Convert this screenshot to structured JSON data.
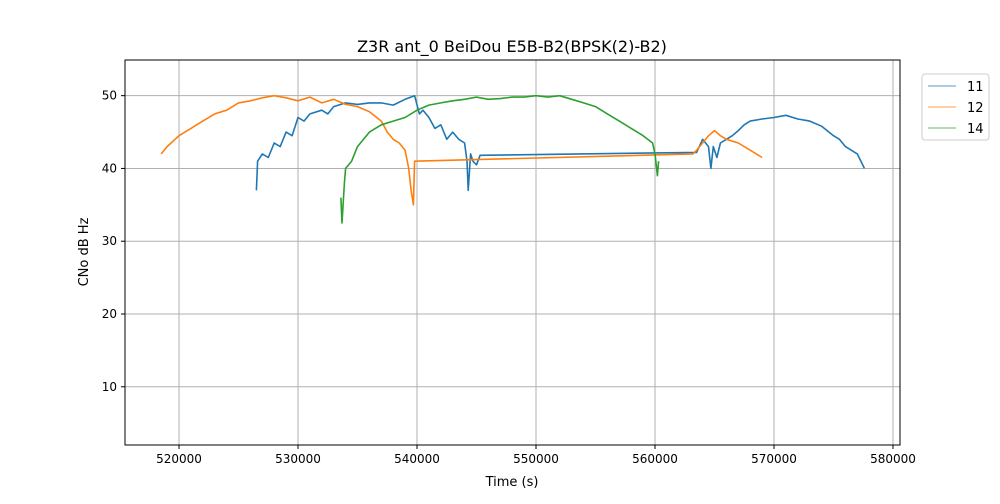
{
  "chart_data": {
    "type": "line",
    "title": "Z3R ant_0 BeiDou E5B-B2(BPSK(2)-B2)",
    "xlabel": "Time (s)",
    "ylabel": "CNo dB Hz",
    "xlim": [
      515460,
      580590
    ],
    "ylim": [
      2.0,
      54.9
    ],
    "xticks": [
      520000,
      530000,
      540000,
      550000,
      560000,
      570000,
      580000
    ],
    "yticks": [
      10,
      20,
      30,
      40,
      50
    ],
    "grid": true,
    "legend_position": "outside-top-right",
    "series": [
      {
        "name": "11",
        "color": "#1f77b4",
        "points": [
          [
            526500,
            37
          ],
          [
            526600,
            41
          ],
          [
            527000,
            42
          ],
          [
            527500,
            41.5
          ],
          [
            528000,
            43.5
          ],
          [
            528500,
            43
          ],
          [
            529000,
            45
          ],
          [
            529500,
            44.5
          ],
          [
            530000,
            47
          ],
          [
            530500,
            46.5
          ],
          [
            531000,
            47.5
          ],
          [
            532000,
            48
          ],
          [
            532500,
            47.5
          ],
          [
            533000,
            48.5
          ],
          [
            534000,
            49
          ],
          [
            535000,
            48.8
          ],
          [
            536000,
            49
          ],
          [
            537000,
            49
          ],
          [
            538000,
            48.7
          ],
          [
            539000,
            49.5
          ],
          [
            539800,
            50
          ],
          [
            540200,
            47.5
          ],
          [
            540500,
            48
          ],
          [
            541000,
            47
          ],
          [
            541500,
            45.5
          ],
          [
            542000,
            46
          ],
          [
            542500,
            44
          ],
          [
            543000,
            45
          ],
          [
            543500,
            44
          ],
          [
            544000,
            43.5
          ],
          [
            544200,
            41
          ],
          [
            544300,
            37
          ],
          [
            544500,
            42
          ],
          [
            544700,
            41
          ],
          [
            545000,
            40.5
          ],
          [
            545300,
            41.8
          ],
          [
            563500,
            42.2
          ],
          [
            564000,
            44
          ],
          [
            564500,
            43
          ],
          [
            564700,
            40
          ],
          [
            564900,
            43
          ],
          [
            565200,
            41.5
          ],
          [
            565500,
            43.5
          ],
          [
            566000,
            44
          ],
          [
            566500,
            44.5
          ],
          [
            567000,
            45.2
          ],
          [
            567500,
            46
          ],
          [
            568000,
            46.5
          ],
          [
            569000,
            46.8
          ],
          [
            570000,
            47
          ],
          [
            571000,
            47.3
          ],
          [
            572000,
            46.8
          ],
          [
            573000,
            46.5
          ],
          [
            574000,
            45.8
          ],
          [
            575000,
            44.5
          ],
          [
            575500,
            44
          ],
          [
            576000,
            43
          ],
          [
            576500,
            42.5
          ],
          [
            577000,
            42
          ],
          [
            577600,
            40
          ]
        ]
      },
      {
        "name": "12",
        "color": "#ff7f0e",
        "points": [
          [
            518500,
            42
          ],
          [
            519000,
            43
          ],
          [
            520000,
            44.5
          ],
          [
            521000,
            45.5
          ],
          [
            522000,
            46.5
          ],
          [
            523000,
            47.5
          ],
          [
            524000,
            48
          ],
          [
            525000,
            49
          ],
          [
            526000,
            49.3
          ],
          [
            527000,
            49.7
          ],
          [
            528000,
            50
          ],
          [
            529000,
            49.7
          ],
          [
            530000,
            49.3
          ],
          [
            531000,
            49.8
          ],
          [
            532000,
            49
          ],
          [
            533000,
            49.5
          ],
          [
            534000,
            48.8
          ],
          [
            535000,
            48.5
          ],
          [
            536000,
            47.8
          ],
          [
            537000,
            46.5
          ],
          [
            537500,
            45
          ],
          [
            538000,
            44
          ],
          [
            538500,
            43.5
          ],
          [
            539000,
            42.5
          ],
          [
            539300,
            40
          ],
          [
            539500,
            37
          ],
          [
            539700,
            35
          ],
          [
            539800,
            41
          ],
          [
            563200,
            42
          ],
          [
            563500,
            42.5
          ],
          [
            564000,
            43.5
          ],
          [
            564500,
            44.5
          ],
          [
            565000,
            45.2
          ],
          [
            565500,
            44.5
          ],
          [
            566000,
            44
          ],
          [
            567000,
            43.5
          ],
          [
            568000,
            42.5
          ],
          [
            569000,
            41.5
          ]
        ]
      },
      {
        "name": "14",
        "color": "#2ca02c",
        "points": [
          [
            533600,
            36
          ],
          [
            533700,
            32.5
          ],
          [
            533900,
            38
          ],
          [
            534000,
            40
          ],
          [
            534500,
            41
          ],
          [
            535000,
            43
          ],
          [
            536000,
            45
          ],
          [
            537000,
            46
          ],
          [
            538000,
            46.5
          ],
          [
            539000,
            47
          ],
          [
            540000,
            48
          ],
          [
            541000,
            48.7
          ],
          [
            542000,
            49
          ],
          [
            543000,
            49.3
          ],
          [
            544000,
            49.5
          ],
          [
            545000,
            49.8
          ],
          [
            546000,
            49.5
          ],
          [
            547000,
            49.6
          ],
          [
            548000,
            49.8
          ],
          [
            549000,
            49.8
          ],
          [
            550000,
            50
          ],
          [
            551000,
            49.8
          ],
          [
            552000,
            50
          ],
          [
            553000,
            49.5
          ],
          [
            554000,
            49
          ],
          [
            555000,
            48.5
          ],
          [
            556000,
            47.5
          ],
          [
            557000,
            46.5
          ],
          [
            558000,
            45.5
          ],
          [
            559000,
            44.5
          ],
          [
            559800,
            43.5
          ],
          [
            560000,
            42
          ],
          [
            560200,
            39
          ],
          [
            560300,
            41
          ]
        ]
      }
    ]
  }
}
